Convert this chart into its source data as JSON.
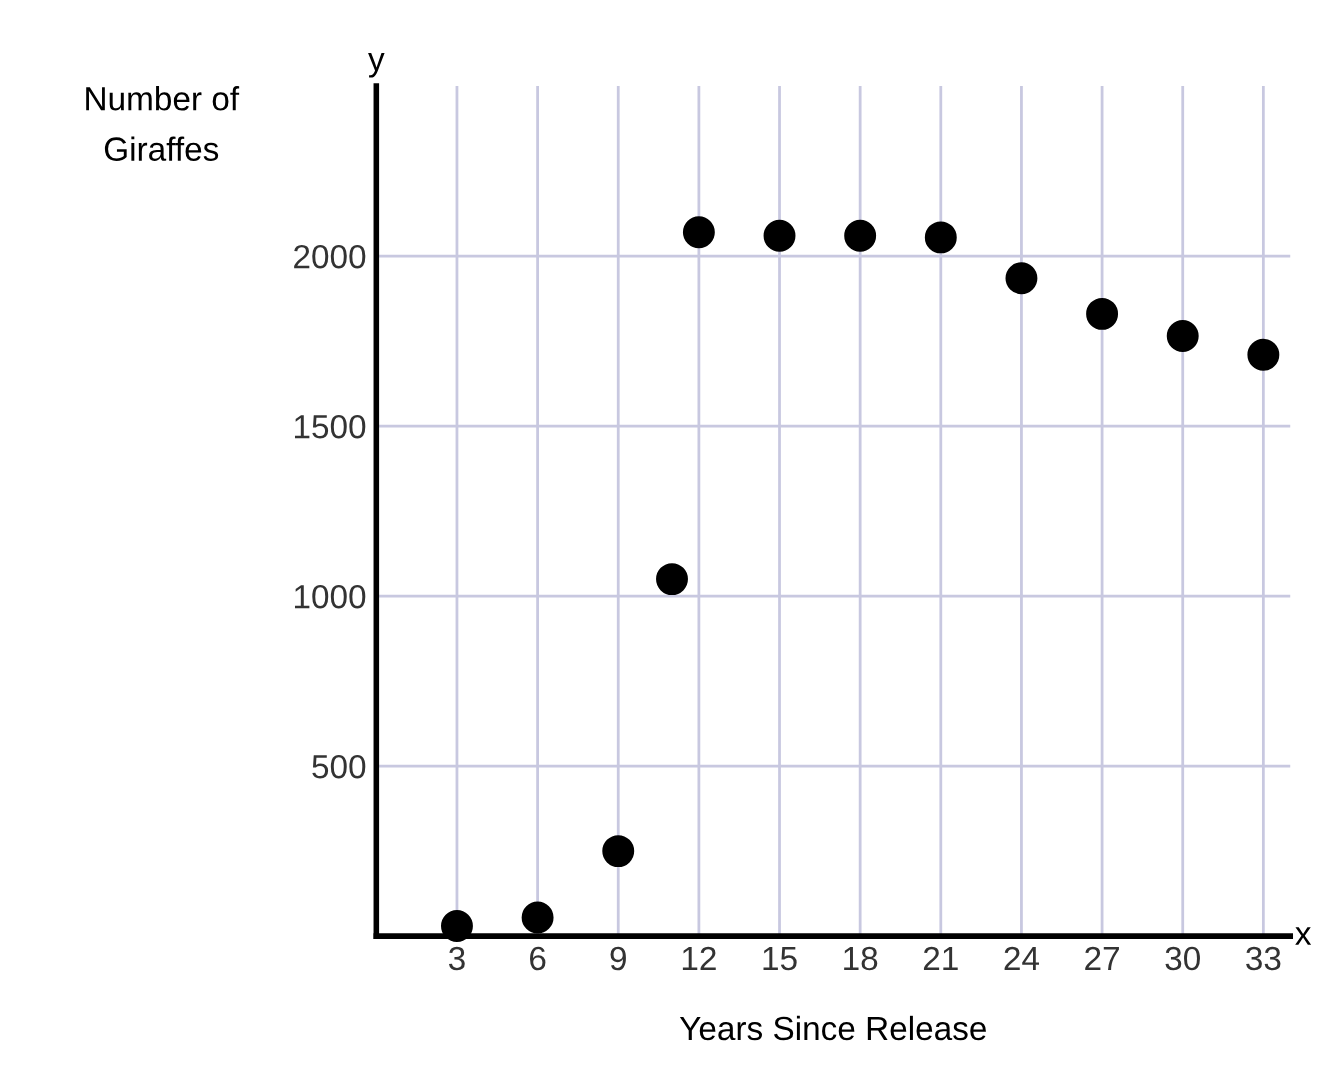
{
  "chart_data": {
    "type": "scatter",
    "xlabel": "Years Since Release",
    "ylabel": "Number of\nGiraffes",
    "x": [
      3,
      6,
      9,
      11,
      12,
      15,
      18,
      21,
      24,
      27,
      30,
      33
    ],
    "values": [
      30,
      55,
      250,
      1050,
      2070,
      2060,
      2060,
      2055,
      1935,
      1830,
      1765,
      1710
    ],
    "color": "#000000",
    "marker": "circle",
    "xlim": [
      0,
      34
    ],
    "ylim": [
      0,
      2500
    ],
    "xticks": [
      3,
      6,
      9,
      12,
      15,
      18,
      21,
      24,
      27,
      30,
      33
    ],
    "yticks": [
      500,
      1000,
      1500,
      2000
    ],
    "grid": true,
    "annotations": [
      "x",
      "y"
    ]
  }
}
